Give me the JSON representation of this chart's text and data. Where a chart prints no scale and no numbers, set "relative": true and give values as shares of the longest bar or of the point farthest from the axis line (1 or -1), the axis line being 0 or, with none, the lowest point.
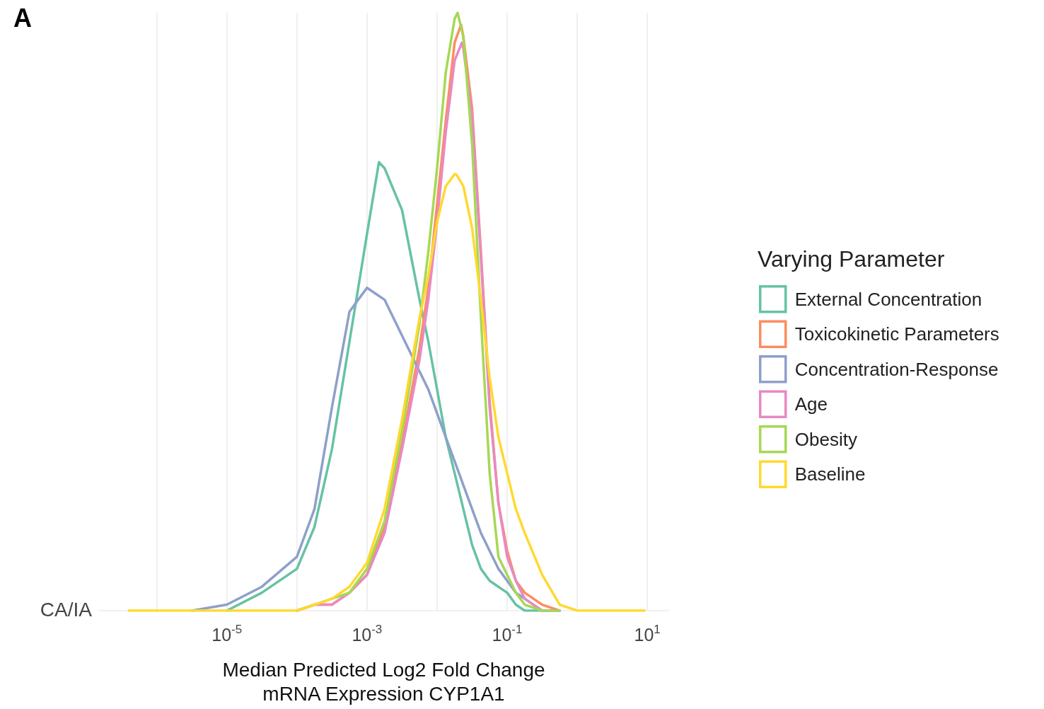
{
  "chart_data": {
    "type": "line",
    "title": "A",
    "xlabel": "Median Predicted Log2 Fold Change\nmRNA Expression CYP1A1",
    "legend_title": "Varying Parameter",
    "annotations": [
      "CA/IA"
    ],
    "relative": true,
    "log": "x",
    "grid": "x",
    "legend": "right",
    "marker": "none",
    "line_style": "solid",
    "xlim": [
      1.5e-07,
      20
    ],
    "xticks": [
      {
        "value": 1e-06,
        "label": null
      },
      {
        "value": 1e-05,
        "label": "10$^{-5}$"
      },
      {
        "value": 0.0001,
        "label": null
      },
      {
        "value": 0.001,
        "label": "10$^{-3}$"
      },
      {
        "value": 0.01,
        "label": null
      },
      {
        "value": 0.1,
        "label": "10$^{-1}$"
      },
      {
        "value": 1,
        "label": null
      },
      {
        "value": 10,
        "label": "10$^{1}$"
      }
    ],
    "series": [
      {
        "name": "External Concentration",
        "color": "#66c2a5",
        "x": [
          1e-05,
          3.16e-05,
          0.0001,
          0.000178,
          0.000316,
          0.000562,
          0.001,
          0.00148,
          0.00178,
          0.00316,
          0.00562,
          0.0075,
          0.01,
          0.0133,
          0.0178,
          0.0237,
          0.0316,
          0.0422,
          0.0562,
          0.075,
          0.1,
          0.133,
          0.178,
          0.316,
          0.562
        ],
        "values": [
          0,
          0.03,
          0.07,
          0.14,
          0.27,
          0.45,
          0.63,
          0.75,
          0.74,
          0.67,
          0.52,
          0.45,
          0.37,
          0.29,
          0.23,
          0.17,
          0.11,
          0.07,
          0.05,
          0.04,
          0.03,
          0.01,
          0,
          0,
          0
        ]
      },
      {
        "name": "Toxicokinetic Parameters",
        "color": "#fc8d62",
        "x": [
          0.0001,
          0.000178,
          0.000316,
          0.000562,
          0.001,
          0.00178,
          0.00316,
          0.00562,
          0.0075,
          0.01,
          0.0133,
          0.0178,
          0.022,
          0.0237,
          0.0316,
          0.0422,
          0.0562,
          0.075,
          0.1,
          0.133,
          0.178,
          0.316,
          0.562
        ],
        "values": [
          0,
          0.01,
          0.01,
          0.03,
          0.06,
          0.14,
          0.28,
          0.44,
          0.54,
          0.68,
          0.82,
          0.95,
          0.98,
          0.96,
          0.84,
          0.6,
          0.35,
          0.18,
          0.1,
          0.05,
          0.03,
          0.01,
          0
        ]
      },
      {
        "name": "Concentration-Response",
        "color": "#8da0cb",
        "x": [
          3.16e-06,
          1e-05,
          3.16e-05,
          0.0001,
          0.000178,
          0.000316,
          0.000562,
          0.001,
          0.00178,
          0.00316,
          0.00562,
          0.0075,
          0.01,
          0.0133,
          0.0178,
          0.0237,
          0.0316,
          0.0422,
          0.0562,
          0.075,
          0.1,
          0.133,
          0.178,
          0.316,
          0.562
        ],
        "values": [
          0,
          0.01,
          0.04,
          0.09,
          0.17,
          0.34,
          0.5,
          0.54,
          0.52,
          0.46,
          0.4,
          0.37,
          0.33,
          0.29,
          0.25,
          0.21,
          0.17,
          0.13,
          0.1,
          0.07,
          0.05,
          0.03,
          0.02,
          0,
          0
        ]
      },
      {
        "name": "Age",
        "color": "#e78ac3",
        "x": [
          0.0001,
          0.000178,
          0.000316,
          0.000562,
          0.001,
          0.00178,
          0.00316,
          0.00562,
          0.0075,
          0.01,
          0.0133,
          0.0178,
          0.0226,
          0.0237,
          0.0316,
          0.0422,
          0.0562,
          0.075,
          0.1,
          0.133,
          0.178,
          0.316,
          0.562
        ],
        "values": [
          0,
          0.01,
          0.01,
          0.03,
          0.06,
          0.13,
          0.27,
          0.42,
          0.52,
          0.65,
          0.8,
          0.92,
          0.95,
          0.94,
          0.83,
          0.59,
          0.34,
          0.18,
          0.09,
          0.05,
          0.02,
          0,
          0
        ]
      },
      {
        "name": "Obesity",
        "color": "#a6d854",
        "x": [
          0.0001,
          0.000178,
          0.000316,
          0.000562,
          0.001,
          0.00178,
          0.00316,
          0.00562,
          0.0075,
          0.01,
          0.0133,
          0.0178,
          0.0196,
          0.0237,
          0.0316,
          0.0422,
          0.0562,
          0.075,
          0.1,
          0.133,
          0.178,
          0.316,
          0.562
        ],
        "values": [
          0,
          0.01,
          0.02,
          0.03,
          0.07,
          0.15,
          0.3,
          0.48,
          0.6,
          0.74,
          0.9,
          0.99,
          1,
          0.96,
          0.78,
          0.49,
          0.23,
          0.09,
          0.06,
          0.03,
          0.01,
          0,
          0
        ]
      },
      {
        "name": "Baseline",
        "color": "#ffd92f",
        "x": [
          3.98e-07,
          1e-06,
          3.16e-06,
          1e-05,
          3.16e-05,
          0.0001,
          0.000178,
          0.000316,
          0.000562,
          0.001,
          0.00178,
          0.00316,
          0.00562,
          0.0075,
          0.01,
          0.0133,
          0.0178,
          0.0187,
          0.0237,
          0.0316,
          0.0422,
          0.0562,
          0.075,
          0.1,
          0.133,
          0.178,
          0.316,
          0.562,
          1,
          1.78,
          3.16,
          9.12
        ],
        "values": [
          0,
          0,
          0,
          0,
          0,
          0,
          0.01,
          0.02,
          0.04,
          0.08,
          0.17,
          0.32,
          0.49,
          0.56,
          0.65,
          0.71,
          0.73,
          0.73,
          0.71,
          0.64,
          0.52,
          0.39,
          0.29,
          0.23,
          0.17,
          0.13,
          0.06,
          0.01,
          0,
          0,
          0,
          0
        ]
      }
    ]
  }
}
